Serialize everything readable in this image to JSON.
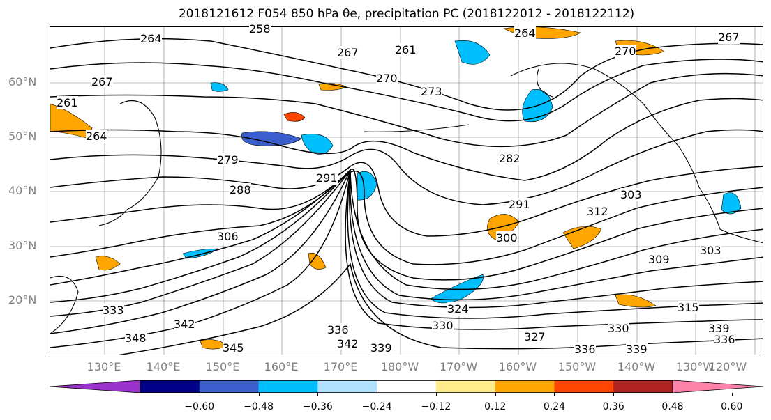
{
  "title": "2018121612 F054 850 hPa θe, precipitation PC (2018122012 - 2018122112)",
  "lat_labels": [
    "60°N",
    "50°N",
    "40°N",
    "30°N",
    "20°N"
  ],
  "lon_labels": [
    "130°E",
    "140°E",
    "150°E",
    "160°E",
    "170°E",
    "180°W",
    "170°W",
    "160°W",
    "150°W",
    "140°W",
    "130°W",
    "120°W"
  ],
  "contour_labels": [
    "264",
    "264",
    "267",
    "267",
    "261",
    "270",
    "273",
    "279",
    "288",
    "291",
    "306",
    "282",
    "291",
    "300",
    "303",
    "312",
    "309",
    "303",
    "315",
    "324",
    "330",
    "336",
    "342",
    "339",
    "342",
    "348",
    "345",
    "330",
    "327",
    "336",
    "339",
    "339",
    "336",
    "333",
    "261",
    "258",
    "264",
    "267",
    "270"
  ],
  "colorbar": {
    "ticks": [
      "−0.60",
      "−0.48",
      "−0.36",
      "−0.24",
      "−0.12",
      "0.12",
      "0.24",
      "0.36",
      "0.48",
      "0.60"
    ],
    "colors": [
      "#9a32cd",
      "#00008b",
      "#3a5fcd",
      "#00bfff",
      "#b0e2ff",
      "#ffffff",
      "#ffec8b",
      "#ffa500",
      "#ff4500",
      "#b22222",
      "#ff82ab"
    ]
  },
  "colors": {
    "contour": "#000000",
    "grid": "#808080",
    "coast": "#000000"
  }
}
